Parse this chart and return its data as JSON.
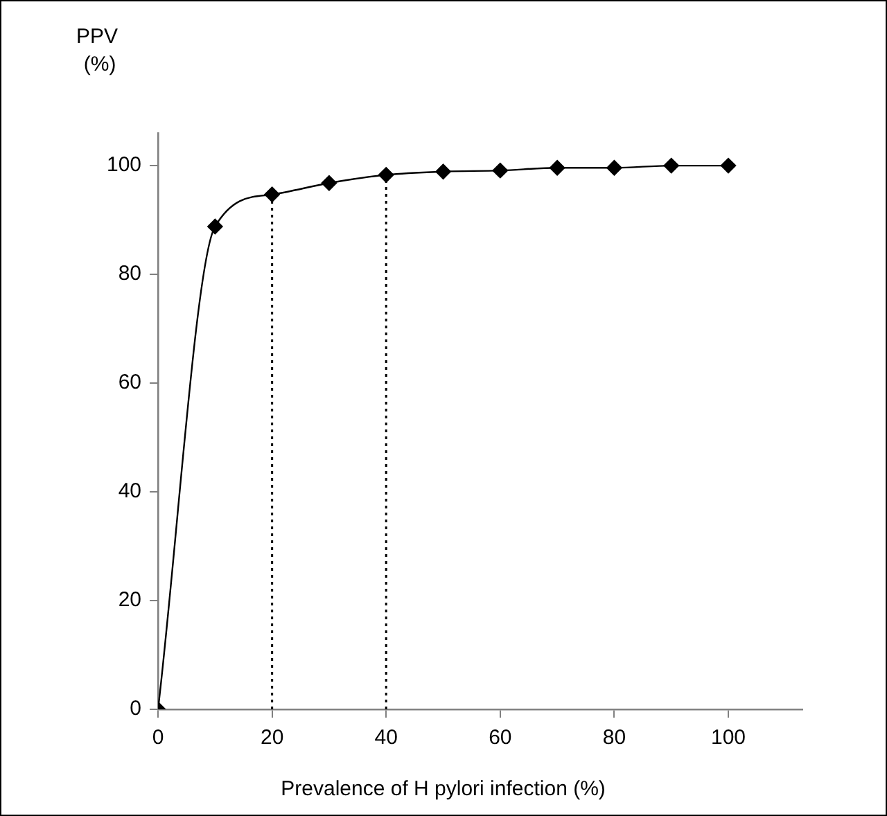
{
  "chart_data": {
    "type": "line",
    "xlabel": "Prevalence of H pylori infection (%)",
    "ylabel": "PPV (%)",
    "x": [
      0,
      10,
      20,
      30,
      40,
      50,
      60,
      70,
      80,
      90,
      100
    ],
    "series": [
      {
        "color": "#000000",
        "values": [
          0,
          88.8,
          94.7,
          96.8,
          98.3,
          98.9,
          99.1,
          99.6,
          99.6,
          100,
          100
        ]
      }
    ],
    "xlim": [
      0,
      113
    ],
    "xticks": [
      0,
      20,
      40,
      60,
      80,
      100
    ],
    "ylim": [
      0,
      106
    ],
    "yticks": [
      0,
      20,
      40,
      60,
      80,
      100
    ],
    "grid": false,
    "legend": false,
    "marker": "diamond",
    "line_style": "solid",
    "ref_lines": [
      {
        "axis": "x",
        "value": 20,
        "color": "#000000",
        "line_style": "dotted"
      },
      {
        "axis": "x",
        "value": 40,
        "color": "#000000",
        "line_style": "dotted"
      }
    ]
  }
}
